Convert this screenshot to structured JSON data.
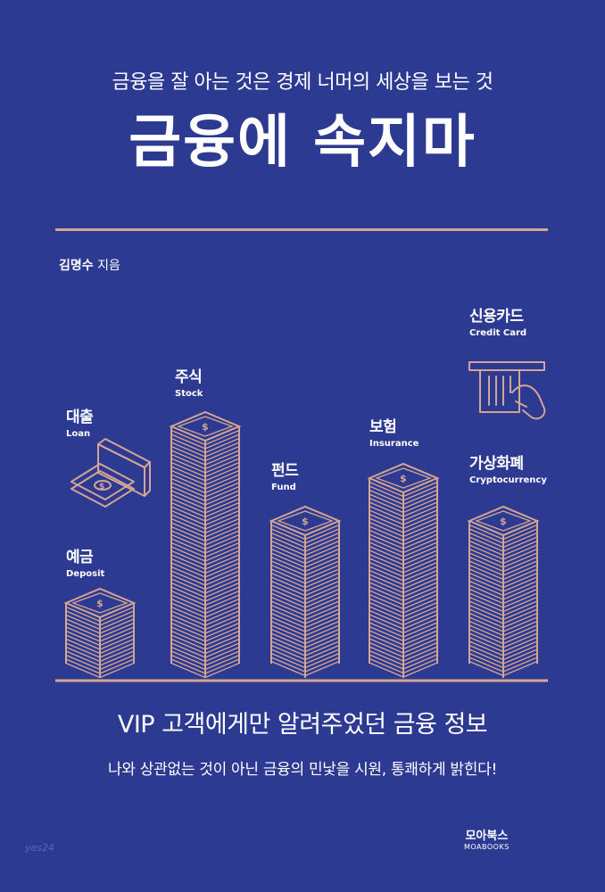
{
  "colors": {
    "background": "#2d3a92",
    "accent": "#d4a592",
    "text": "#ffffff"
  },
  "cover": {
    "subtitle": "금융을 잘 아는 것은 경제 너머의 세상을 보는 것",
    "title": "금융에 속지마",
    "author_name": "김명수",
    "author_role": "지음",
    "headline": "VIP 고객에게만 알려주었던 금융 정보",
    "tagline": "나와 상관없는 것이 아닌 금융의 민낯을 시원, 통쾌하게 밝힌다!",
    "publisher_ko": "모아북스",
    "publisher_en": "MOABOOKS",
    "watermark": "yes24"
  },
  "categories": [
    {
      "ko": "대출",
      "en": "Loan",
      "icon": "cash-machine-icon"
    },
    {
      "ko": "예금",
      "en": "Deposit",
      "icon": "money-stack-icon"
    },
    {
      "ko": "주식",
      "en": "Stock",
      "icon": "money-stack-icon"
    },
    {
      "ko": "펀드",
      "en": "Fund",
      "icon": "money-stack-icon"
    },
    {
      "ko": "보험",
      "en": "Insurance",
      "icon": "money-stack-icon"
    },
    {
      "ko": "신용카드",
      "en": "Credit Card",
      "icon": "credit-card-terminal-icon"
    },
    {
      "ko": "가상화폐",
      "en": "Cryptocurrency",
      "icon": "money-stack-icon"
    }
  ]
}
